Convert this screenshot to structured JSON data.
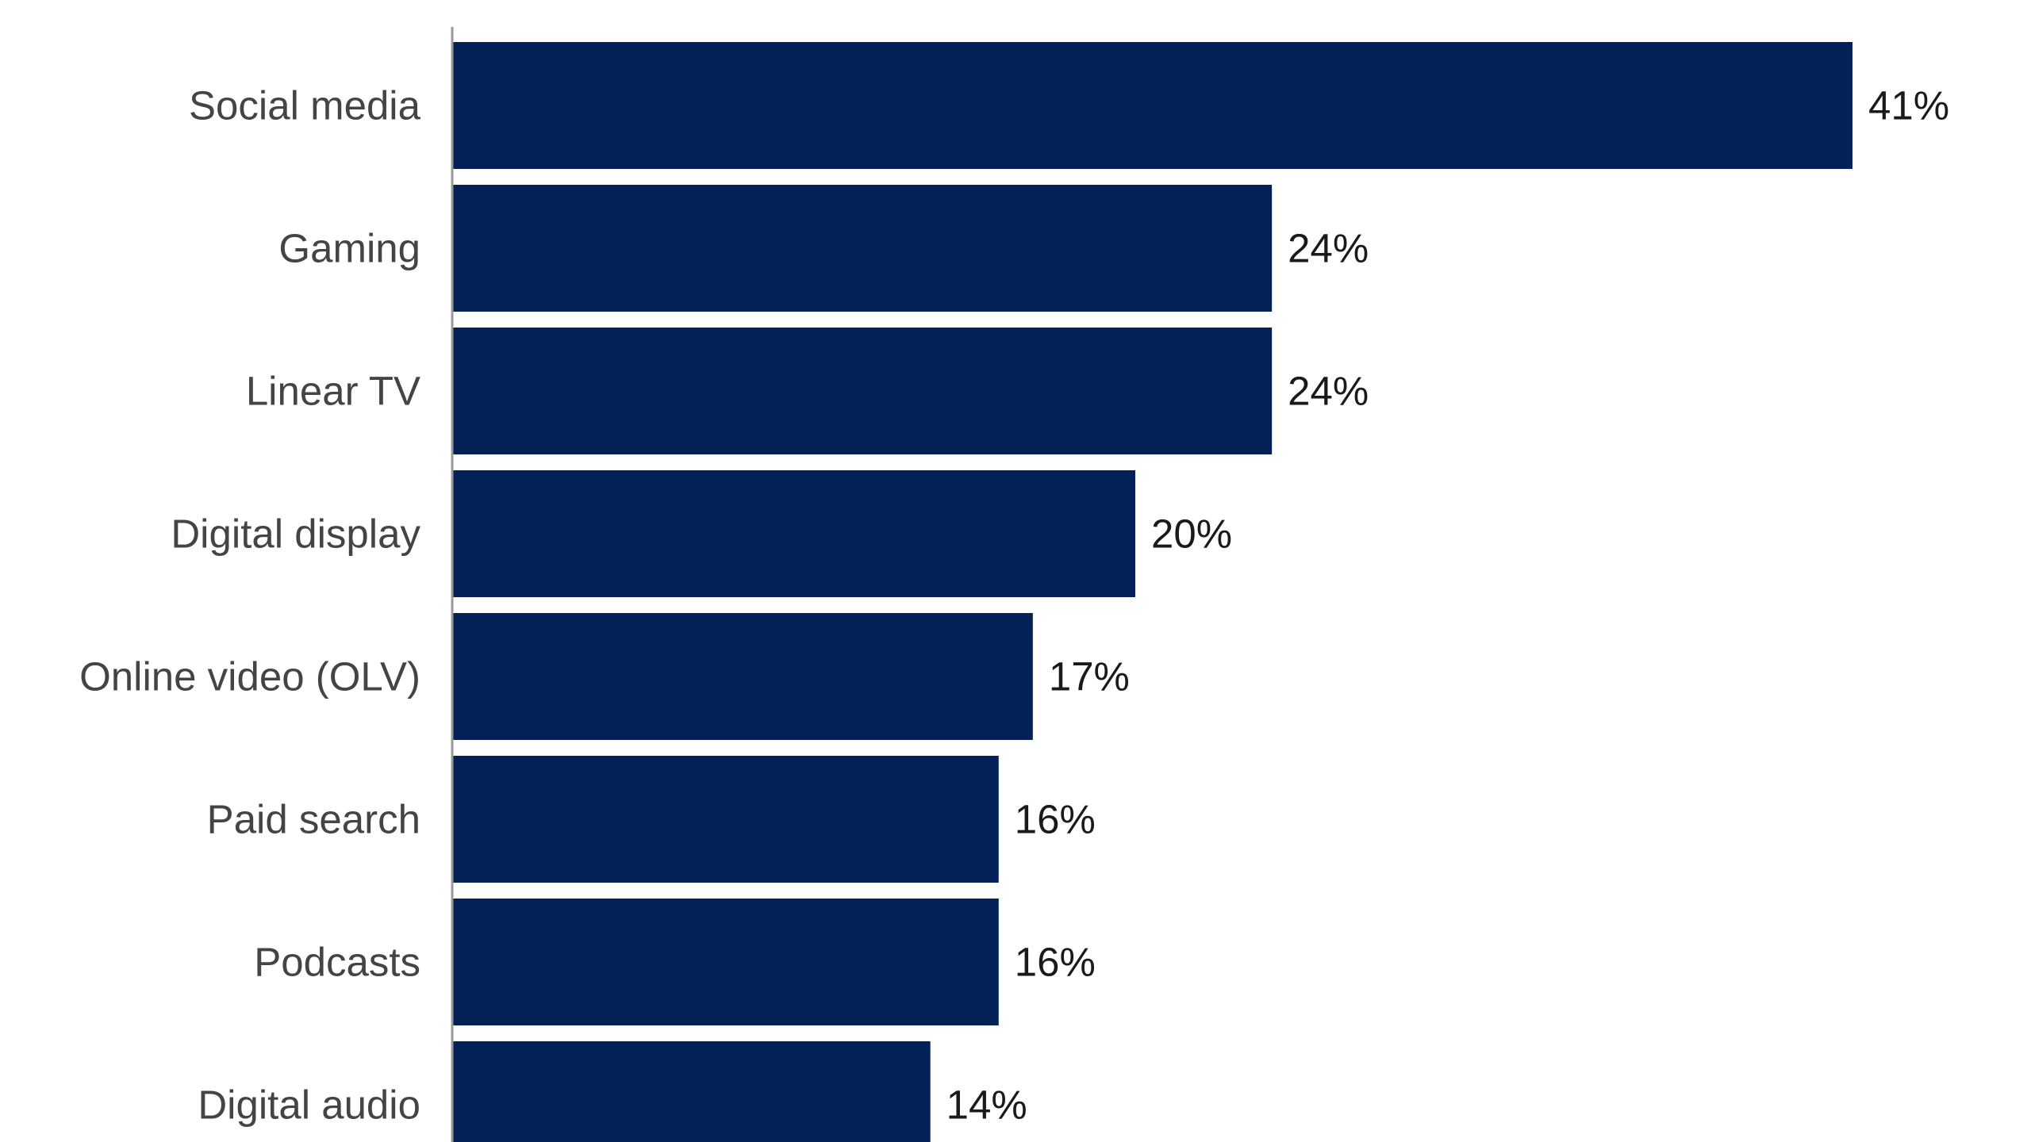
{
  "chart_data": {
    "type": "bar",
    "orientation": "horizontal",
    "categories": [
      "Social media",
      "Gaming",
      "Linear TV",
      "Digital display",
      "Online video (OLV)",
      "Paid search",
      "Podcasts",
      "Digital audio"
    ],
    "values": [
      41,
      24,
      24,
      20,
      17,
      16,
      16,
      14
    ],
    "value_labels": [
      "41%",
      "24%",
      "24%",
      "20%",
      "17%",
      "16%",
      "16%",
      "14%"
    ],
    "unit": "%",
    "title": "",
    "xlabel": "",
    "ylabel": "",
    "xlim": [
      0,
      41
    ],
    "grid": false,
    "legend": "none",
    "colors": {
      "bar": "#032057",
      "axis": "#999999",
      "category_text": "#444444",
      "value_text": "#1a1a1a"
    }
  }
}
